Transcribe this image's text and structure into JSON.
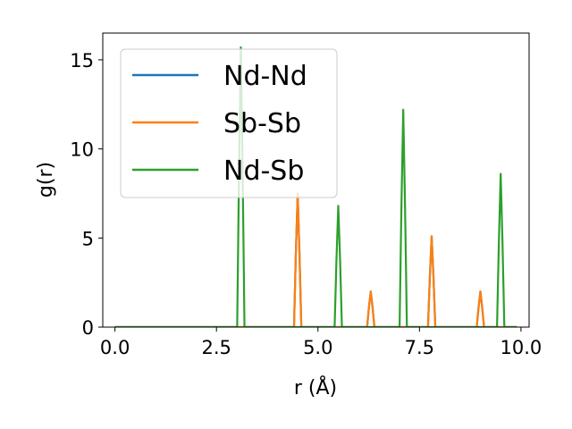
{
  "chart_data": {
    "type": "line",
    "xlabel": "r (Å)",
    "ylabel": "g(r)",
    "xlim": [
      -0.3,
      10.2
    ],
    "ylim": [
      0,
      16.5
    ],
    "xticks": [
      0.0,
      2.5,
      5.0,
      7.5,
      10.0
    ],
    "xtick_labels": [
      "0.0",
      "2.5",
      "5.0",
      "7.5",
      "10.0"
    ],
    "yticks": [
      0,
      5,
      10,
      15
    ],
    "ytick_labels": [
      "0",
      "5",
      "10",
      "15"
    ],
    "grid": false,
    "legend_position": "top-left",
    "x_range": [
      0.0,
      9.9
    ],
    "series": [
      {
        "name": "Nd-Nd",
        "color": "#1f77b4",
        "peaks": [
          {
            "r": 4.5,
            "height": 7.5
          },
          {
            "r": 6.3,
            "height": 2.0
          },
          {
            "r": 7.8,
            "height": 5.1
          },
          {
            "r": 9.0,
            "height": 2.0
          }
        ]
      },
      {
        "name": "Sb-Sb",
        "color": "#ff7f0e",
        "peaks": [
          {
            "r": 4.5,
            "height": 7.5
          },
          {
            "r": 6.3,
            "height": 2.0
          },
          {
            "r": 7.8,
            "height": 5.1
          },
          {
            "r": 9.0,
            "height": 2.0
          }
        ]
      },
      {
        "name": "Nd-Sb",
        "color": "#2ca02c",
        "peaks": [
          {
            "r": 3.1,
            "height": 15.7
          },
          {
            "r": 5.5,
            "height": 6.8
          },
          {
            "r": 7.1,
            "height": 12.2
          },
          {
            "r": 9.5,
            "height": 8.6
          }
        ]
      }
    ]
  }
}
